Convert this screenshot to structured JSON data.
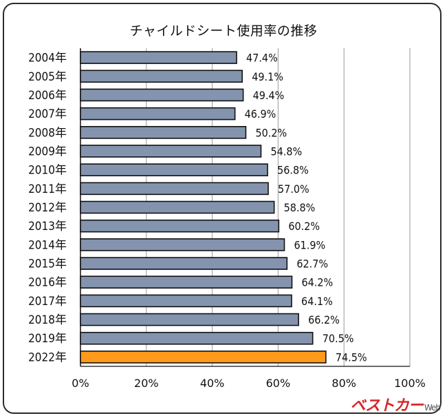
{
  "chart_data": {
    "type": "bar",
    "orientation": "horizontal",
    "title": "チャイルドシート使用率の推移",
    "categories": [
      "2004年",
      "2005年",
      "2006年",
      "2007年",
      "2008年",
      "2009年",
      "2010年",
      "2011年",
      "2012年",
      "2013年",
      "2014年",
      "2015年",
      "2016年",
      "2017年",
      "2018年",
      "2019年",
      "2022年"
    ],
    "values": [
      47.4,
      49.1,
      49.4,
      46.9,
      50.2,
      54.8,
      56.8,
      57.0,
      58.8,
      60.2,
      61.9,
      62.7,
      64.2,
      64.1,
      66.2,
      70.5,
      74.5
    ],
    "value_labels": [
      "47.4%",
      "49.1%",
      "49.4%",
      "46.9%",
      "50.2%",
      "54.8%",
      "56.8%",
      "57.0%",
      "58.8%",
      "60.2%",
      "61.9%",
      "62.7%",
      "64.2%",
      "64.1%",
      "66.2%",
      "70.5%",
      "74.5%"
    ],
    "xlim": [
      0,
      100
    ],
    "x_ticks": [
      "0%",
      "20%",
      "40%",
      "60%",
      "80%",
      "100%"
    ],
    "grid": true,
    "colors": {
      "bar": "#8494ae",
      "highlight_bar": "#ff9a1a",
      "bar_edge": "#111111",
      "grid": "#9a9a9a"
    },
    "highlight_category": "2022年"
  },
  "watermark": {
    "text": "ベストカー",
    "suffix": "Web"
  }
}
